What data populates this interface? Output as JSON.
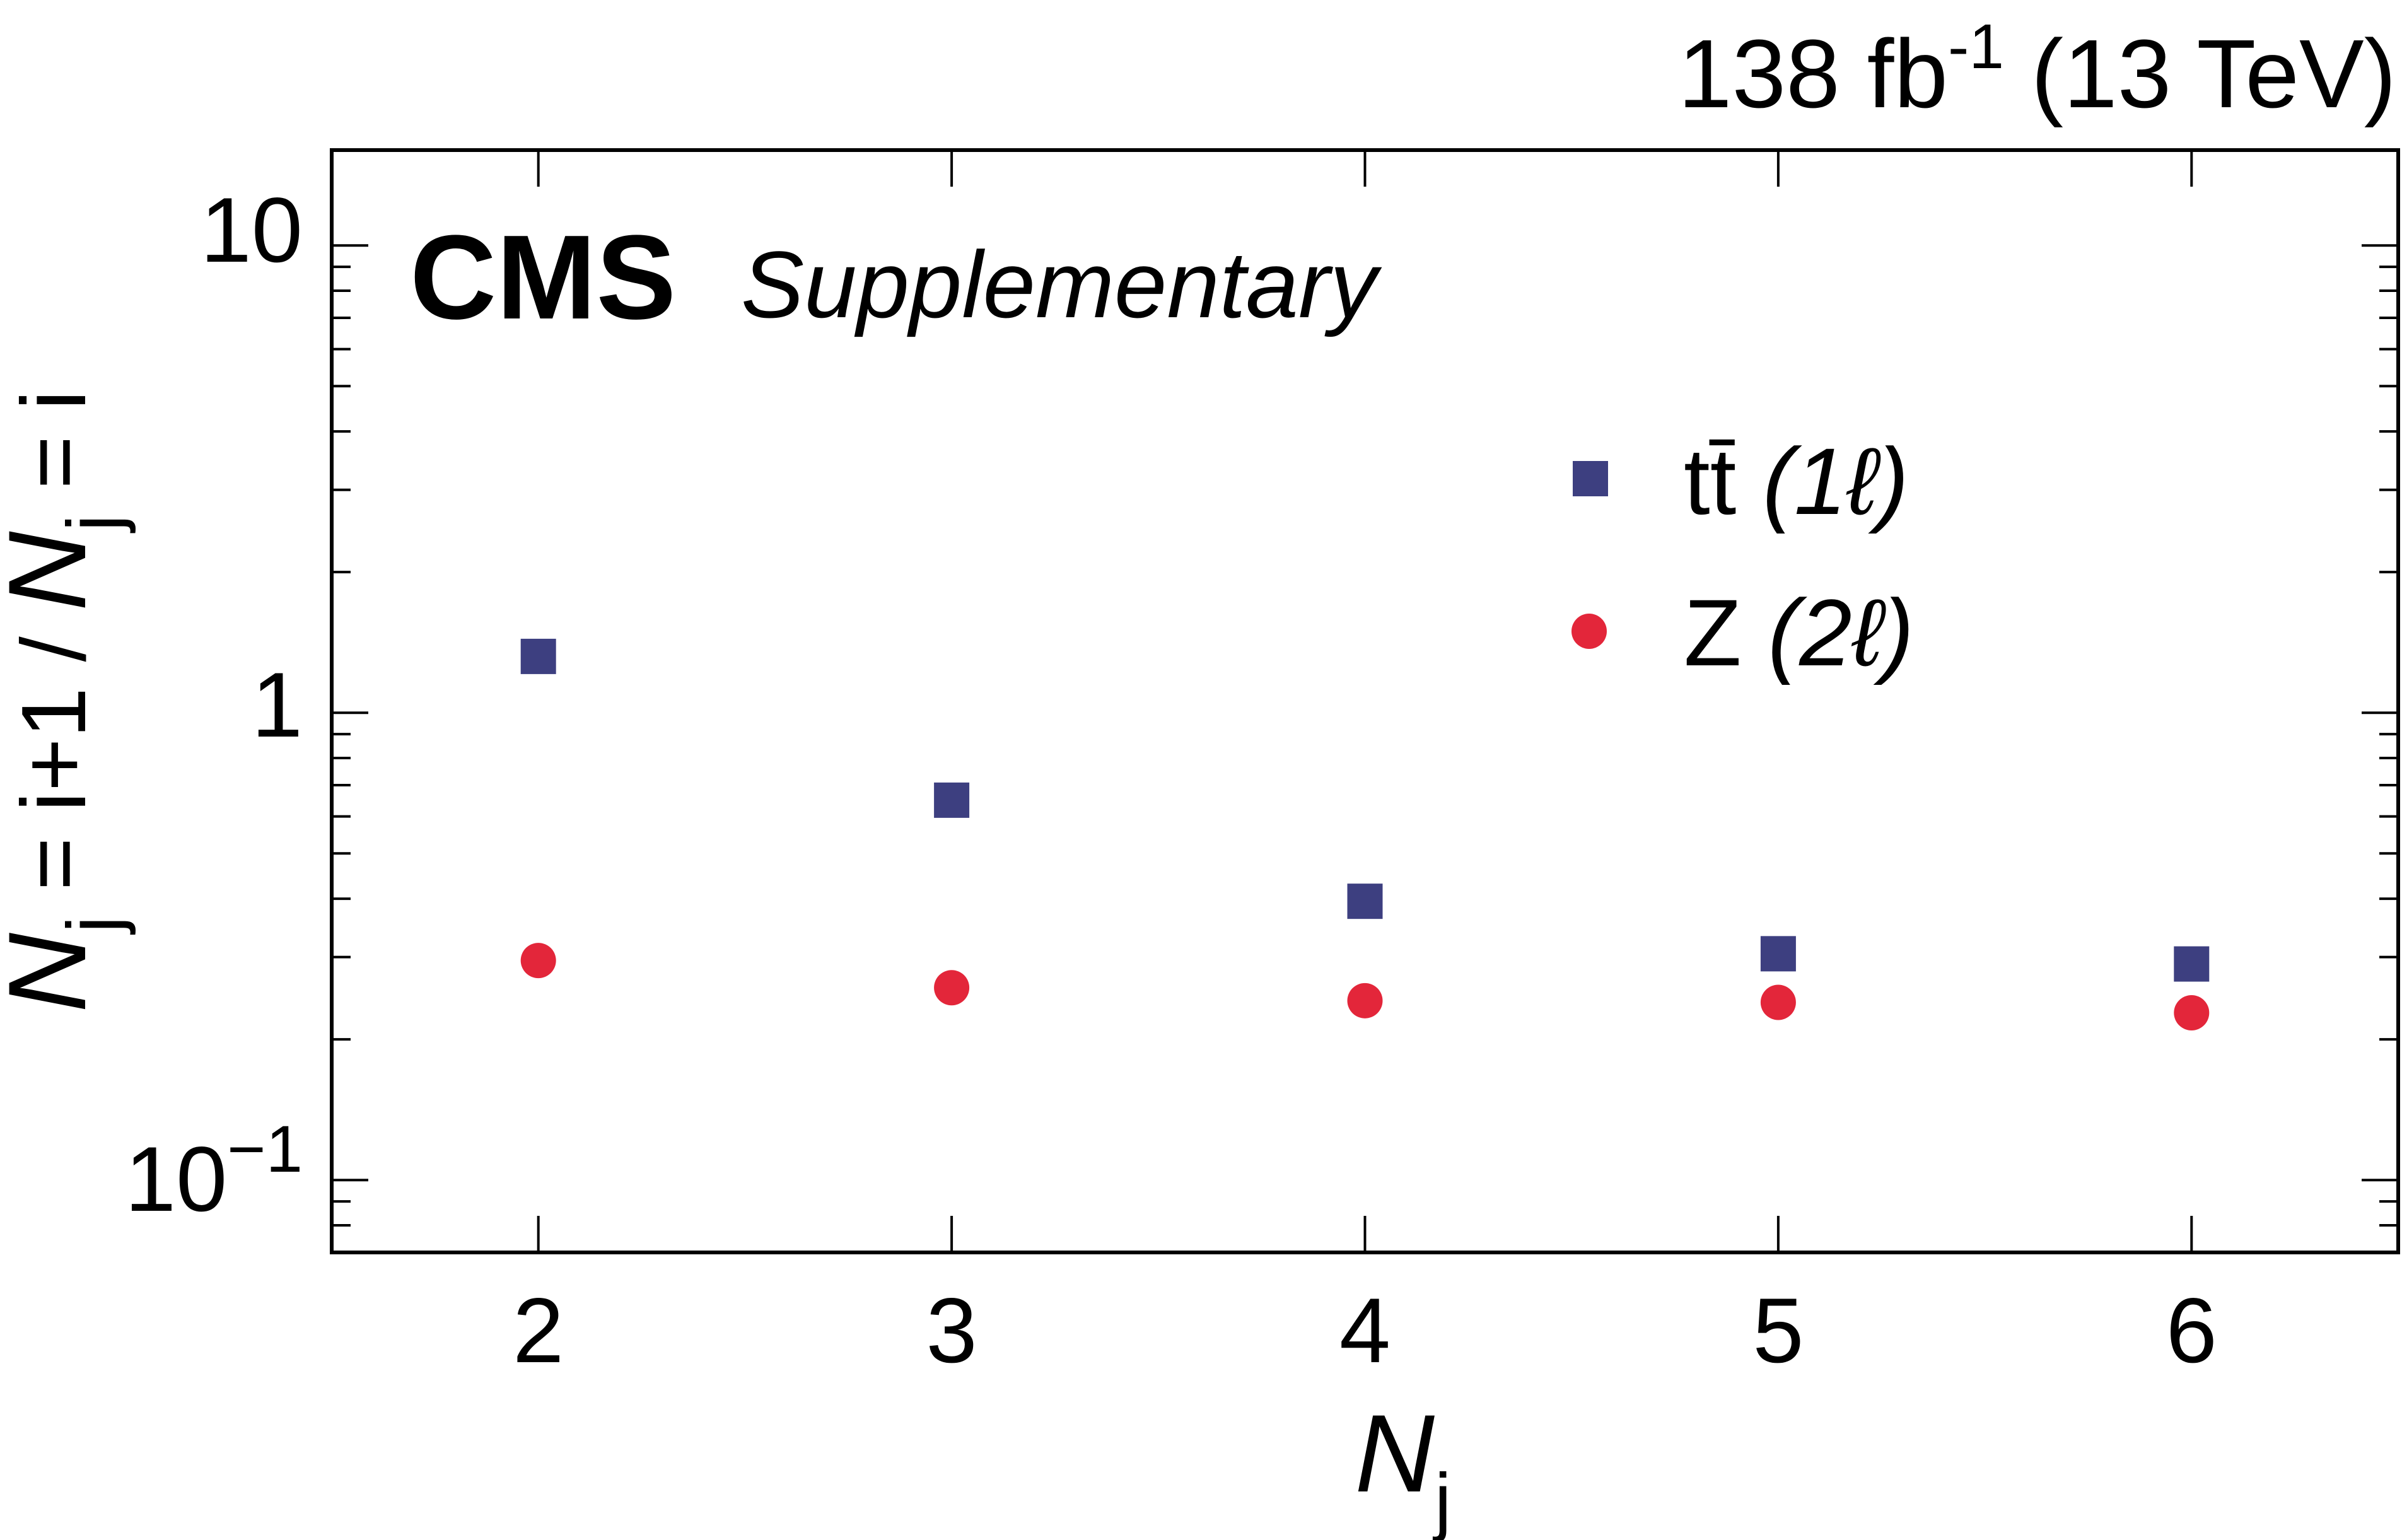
{
  "experiment_label": "CMS",
  "extra_label": "Supplementary",
  "lumi": {
    "value": "138 fb",
    "exponent": "-1",
    "energy": "(13 TeV)"
  },
  "y_tick_text": {
    "ten": "10",
    "one": "1",
    "tenth_base": "10",
    "tenth_exp": "−1"
  },
  "axes_titles": {
    "x_main": "N",
    "x_sub": "j",
    "y_num_main": "N",
    "y_num_sub": "j",
    "y_num_rest": " = i+1 / ",
    "y_den_main": "N",
    "y_den_sub": "j",
    "y_den_rest": " = i"
  },
  "legend_text": {
    "ttbar_main": "tt̄",
    "ttbar_note": "(1ℓ)",
    "z_main": "Z",
    "z_note": "(2ℓ)"
  },
  "chart_data": {
    "type": "scatter",
    "x": [
      2,
      3,
      4,
      5,
      6
    ],
    "xlim": [
      1.5,
      6.5
    ],
    "ylim": [
      0.07,
      16
    ],
    "y_scale": "log",
    "grid": false,
    "legend_position": "top-right",
    "series": [
      {
        "name": "tt̄ (1ℓ)",
        "marker": "square",
        "color": "#3d3f80",
        "values": [
          1.32,
          0.65,
          0.395,
          0.305,
          0.29
        ]
      },
      {
        "name": "Z (2ℓ)",
        "marker": "circle",
        "color": "#e3263a",
        "values": [
          0.295,
          0.258,
          0.242,
          0.24,
          0.228
        ]
      }
    ]
  }
}
